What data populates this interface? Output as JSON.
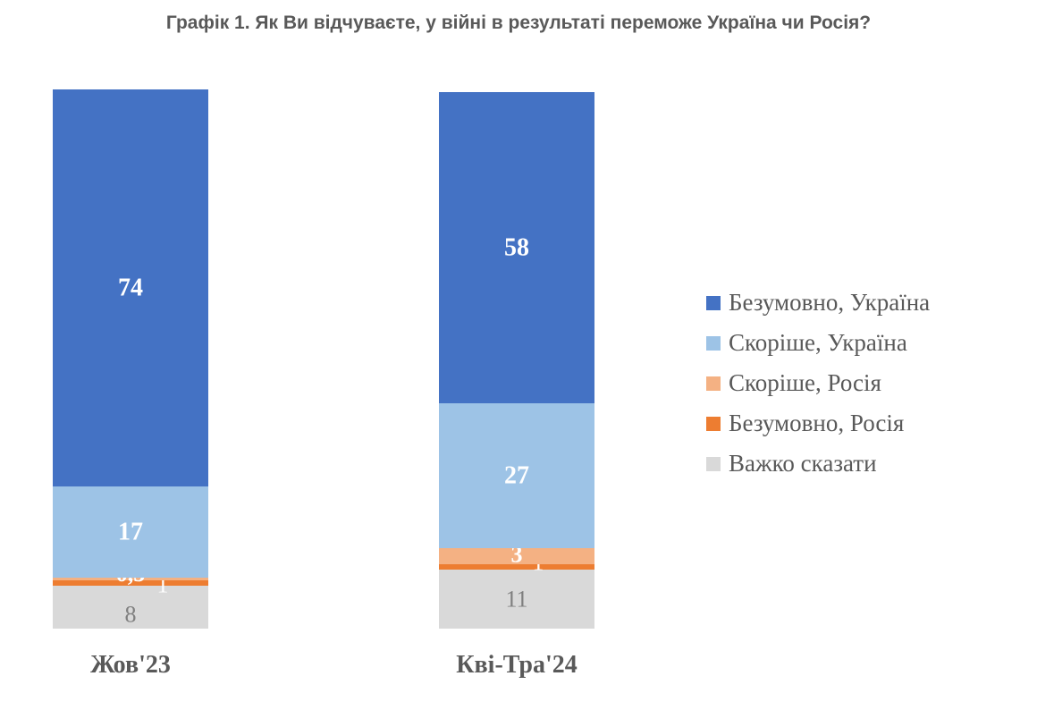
{
  "title": "Графік 1. Як Ви відчуваєте, у війні в результаті переможе Україна чи Росія?",
  "chart_data": {
    "type": "bar",
    "stacked": true,
    "categories": [
      "Жов'23",
      "Кві-Тра'24"
    ],
    "series": [
      {
        "name": "Важко сказати",
        "values": [
          8,
          11
        ],
        "color": "#d9d9d9",
        "label_color": "#7f7f7f",
        "label_weight": "normal"
      },
      {
        "name": "Безумовно, Росія",
        "values": [
          1,
          1
        ],
        "color": "#ed7d31",
        "label_color": "#ffffff",
        "label_weight": "normal"
      },
      {
        "name": "Скоріше, Росія",
        "values": [
          0.5,
          3
        ],
        "color": "#f4b183",
        "label_color": "#ffffff",
        "label_weight": "bold"
      },
      {
        "name": "Скоріше, Україна",
        "values": [
          17,
          27
        ],
        "color": "#9dc3e6",
        "label_color": "#ffffff",
        "label_weight": "bold"
      },
      {
        "name": "Безумовно, Україна",
        "values": [
          74,
          58
        ],
        "color": "#4472c4",
        "label_color": "#ffffff",
        "label_weight": "bold"
      }
    ],
    "data_labels": [
      [
        "8",
        "1",
        "0,5",
        "17",
        "74"
      ],
      [
        "11",
        "1",
        "3",
        "27",
        "58"
      ]
    ],
    "legend_order": [
      "Безумовно, Україна",
      "Скоріше, Україна",
      "Скоріше, Росія",
      "Безумовно, Росія",
      "Важко сказати"
    ],
    "legend_position": "right",
    "ylim": [
      0,
      100
    ],
    "grid": false,
    "xlabel": "",
    "ylabel": ""
  }
}
